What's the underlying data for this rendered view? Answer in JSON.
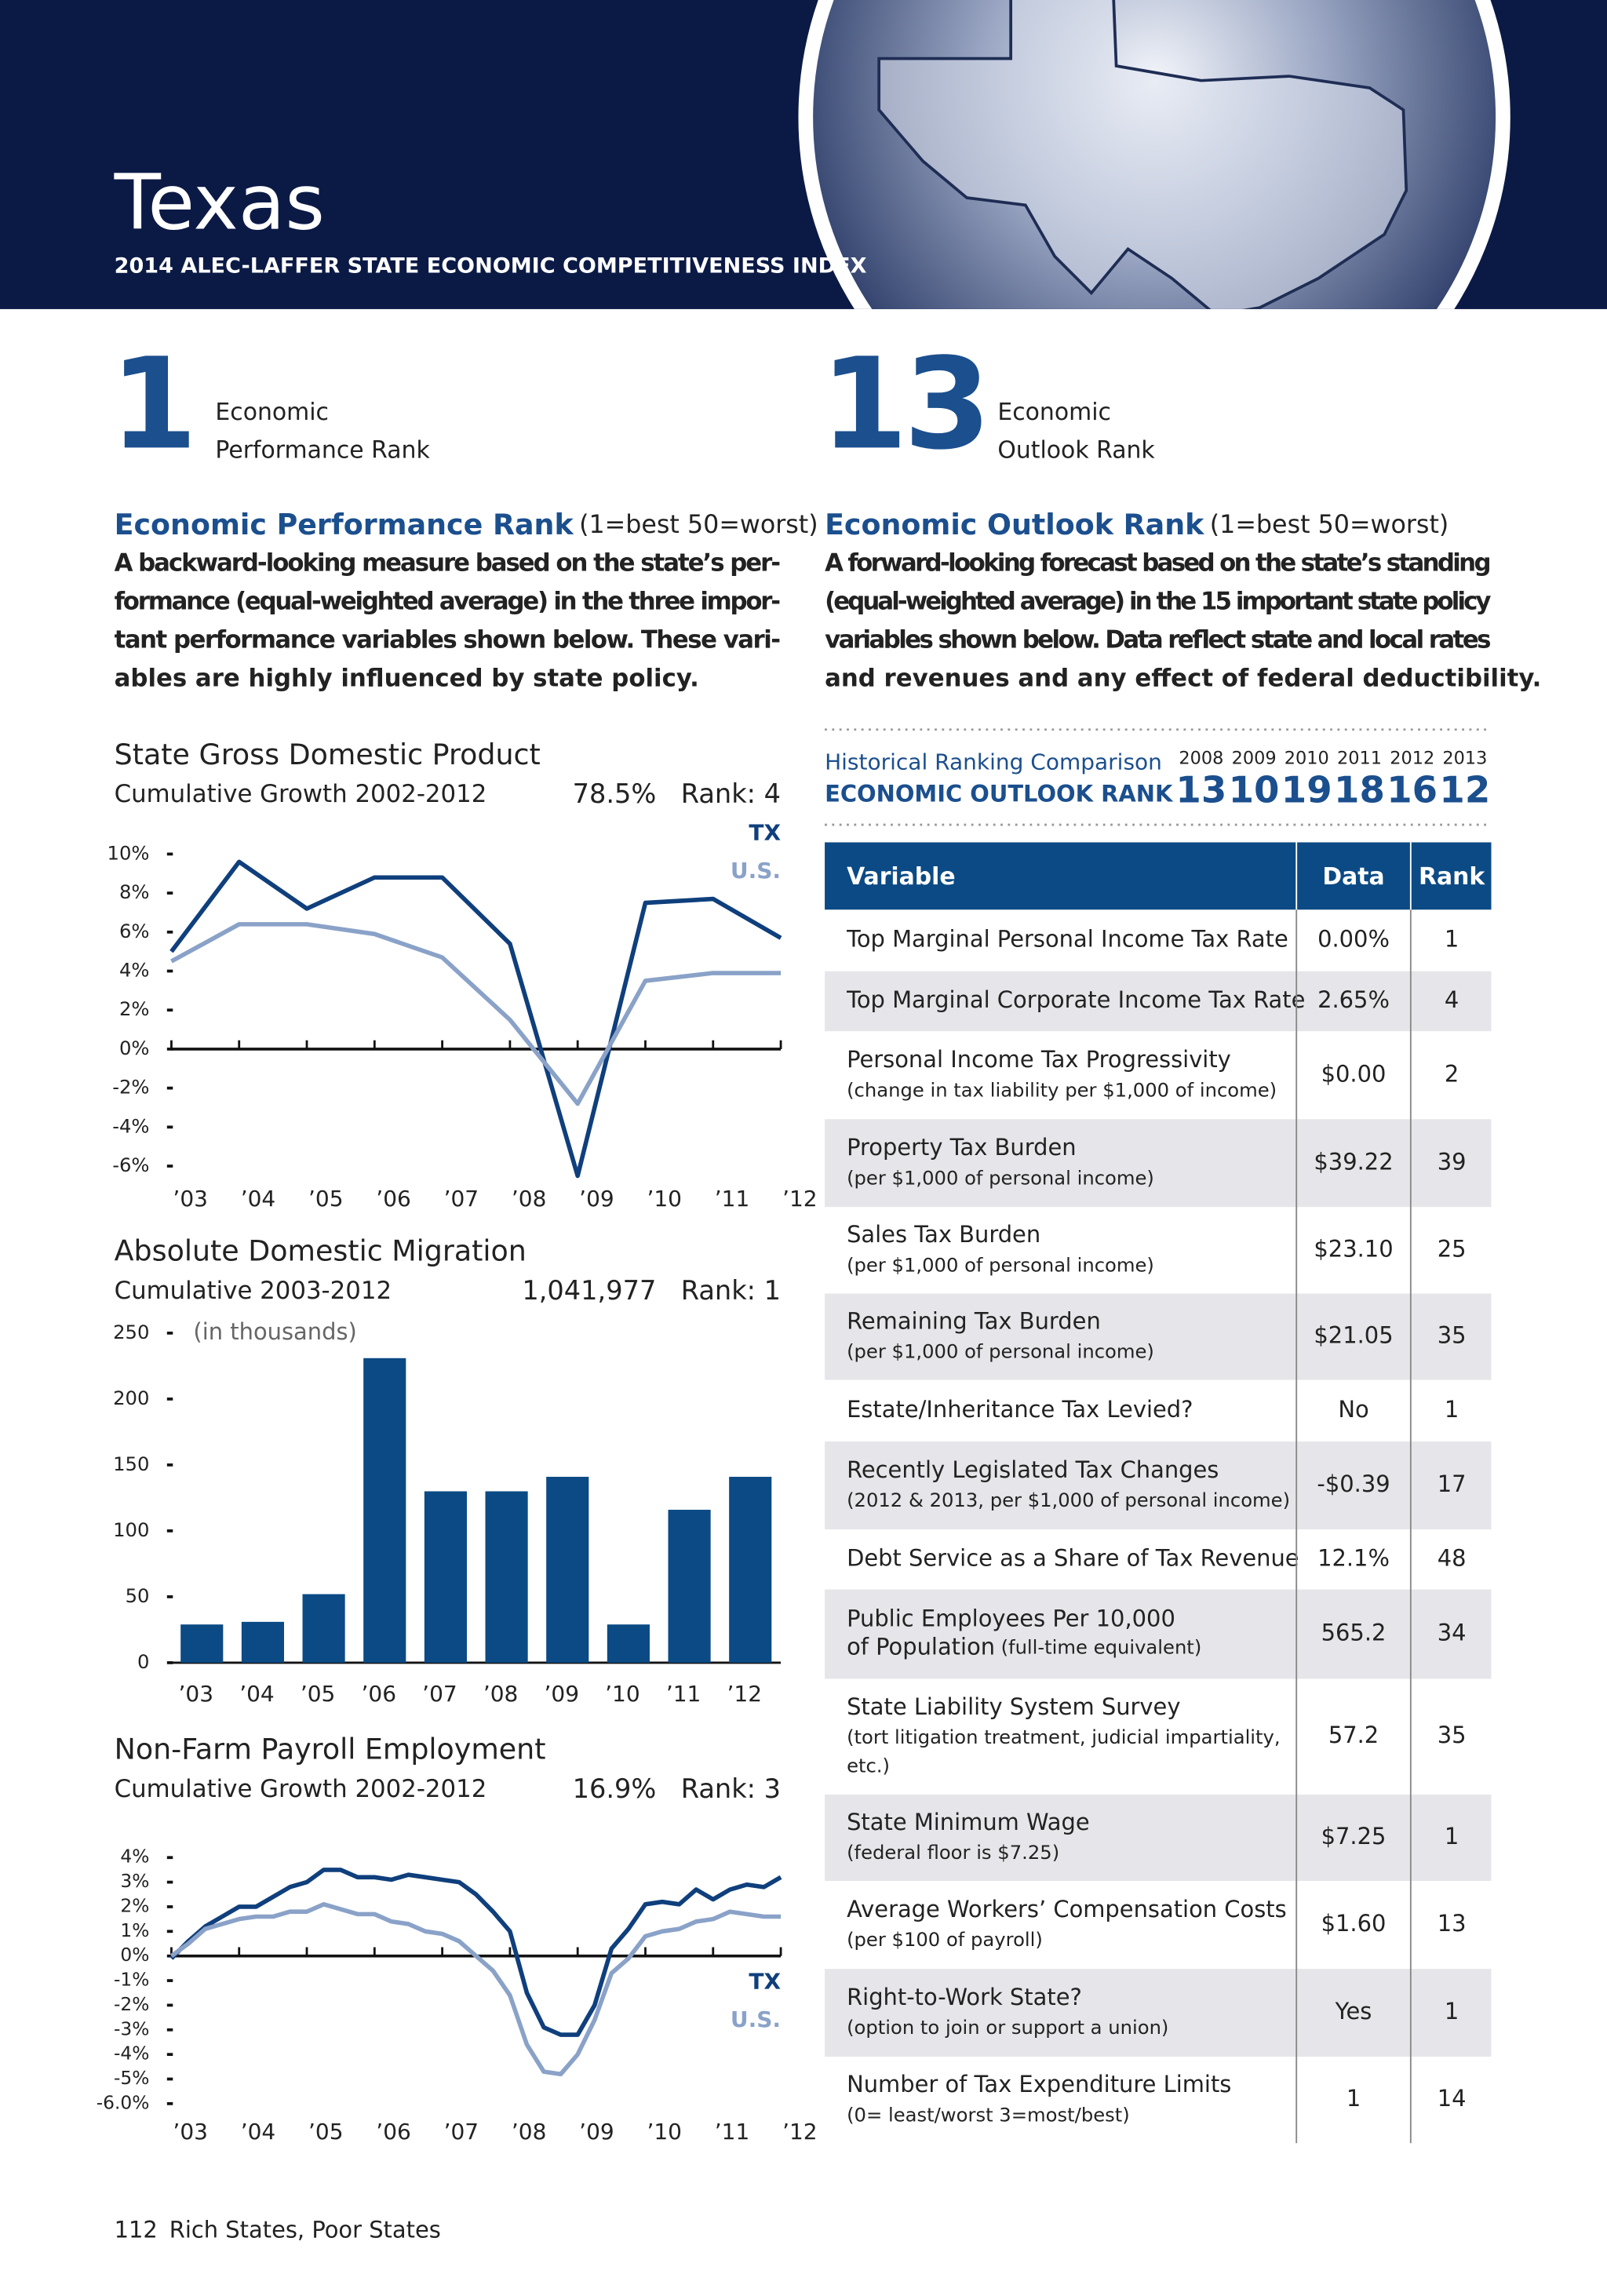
{
  "header": {
    "state": "Texas",
    "subtitle": "2014 ALEC-LAFFER STATE ECONOMIC COMPETITIVENESS INDEX"
  },
  "performance": {
    "rank": 1,
    "label": [
      "Economic",
      "Performance Rank"
    ],
    "heading": "Economic Performance Rank",
    "scale": "(1=best  50=worst)",
    "text": [
      "A backward-looking measure based on the state’s per-",
      "formance (equal-weighted average) in the three impor-",
      "tant performance variables shown below. These vari-",
      "ables are highly influenced by state policy."
    ]
  },
  "outlook": {
    "rank": 13,
    "label": [
      "Economic",
      "Outlook Rank"
    ],
    "heading": "Economic Outlook Rank",
    "scale": "(1=best  50=worst)",
    "text": [
      "A forward-looking forecast based on the state’s standing",
      "(equal-weighted average) in the 15 important state policy",
      "variables shown below. Data reflect state and local rates",
      "and revenues and any effect of federal deductibility."
    ]
  },
  "history": {
    "title": "Historical Ranking Comparison",
    "label": "ECONOMIC OUTLOOK RANK",
    "years": [
      2008,
      2009,
      2010,
      2011,
      2012,
      2013
    ],
    "ranks": [
      13,
      10,
      19,
      18,
      16,
      12
    ]
  },
  "table": {
    "columns": [
      "Variable",
      "Data",
      "Rank"
    ],
    "rows": [
      {
        "name": [
          "Top Marginal Personal Income Tax Rate"
        ],
        "note": [],
        "data": "0.00%",
        "rank": 1
      },
      {
        "name": [
          "Top Marginal Corporate Income Tax Rate"
        ],
        "note": [],
        "data": "2.65%",
        "rank": 4
      },
      {
        "name": [
          "Personal Income Tax Progressivity"
        ],
        "note": [
          "(change in tax liability per $1,000 of income)"
        ],
        "data": "$0.00",
        "rank": 2
      },
      {
        "name": [
          "Property Tax Burden"
        ],
        "note": [
          "(per $1,000 of personal income)"
        ],
        "data": "$39.22",
        "rank": 39
      },
      {
        "name": [
          "Sales Tax Burden"
        ],
        "note": [
          "(per $1,000 of personal income)"
        ],
        "data": "$23.10",
        "rank": 25
      },
      {
        "name": [
          "Remaining Tax Burden"
        ],
        "note": [
          "(per $1,000 of personal income)"
        ],
        "data": "$21.05",
        "rank": 35
      },
      {
        "name": [
          "Estate/Inheritance Tax Levied?"
        ],
        "note": [],
        "data": "No",
        "rank": 1
      },
      {
        "name": [
          "Recently Legislated Tax Changes"
        ],
        "note": [
          "(2012 & 2013, per $1,000 of personal income)"
        ],
        "data": "-$0.39",
        "rank": 17
      },
      {
        "name": [
          "Debt Service as a Share of Tax Revenue"
        ],
        "note": [],
        "data": "12.1%",
        "rank": 48
      },
      {
        "name": [
          "Public Employees Per 10,000",
          "of Population"
        ],
        "note": [],
        "note_inline": "(full-time equivalent)",
        "data": "565.2",
        "rank": 34
      },
      {
        "name": [
          "State Liability System Survey"
        ],
        "note": [
          "(tort litigation treatment, judicial impartiality,",
          "etc.)"
        ],
        "data": "57.2",
        "rank": 35
      },
      {
        "name": [
          "State Minimum Wage"
        ],
        "note": [
          "(federal floor is $7.25)"
        ],
        "data": "$7.25",
        "rank": 1
      },
      {
        "name": [
          "Average Workers’ Compensation Costs"
        ],
        "note": [
          "(per $100 of payroll)"
        ],
        "data": "$1.60",
        "rank": 13
      },
      {
        "name": [
          "Right-to-Work State?"
        ],
        "note": [
          "(option to join or support a union)"
        ],
        "data": "Yes",
        "rank": 1
      },
      {
        "name": [
          "Number of Tax Expenditure Limits"
        ],
        "note": [
          "(0= least/worst   3=most/best)"
        ],
        "data": "1",
        "rank": 14
      }
    ]
  },
  "chart_data": [
    {
      "type": "line",
      "title": "State Gross Domestic Product",
      "subtitle": "Cumulative Growth 2002-2012",
      "stat": "78.5%",
      "rank": "Rank: 4",
      "categories": [
        "’03",
        "’04",
        "’05",
        "’06",
        "’07",
        "’08",
        "’09",
        "’10",
        "’11",
        "’12"
      ],
      "series": [
        {
          "name": "TX",
          "color": "#0f3f7c",
          "values": [
            5,
            9.6,
            7.2,
            8.8,
            8.8,
            5.4,
            -6.5,
            7.5,
            7.7,
            5.7
          ]
        },
        {
          "name": "U.S.",
          "color": "#8aa2c8",
          "values": [
            4.5,
            6.4,
            6.4,
            5.9,
            4.7,
            1.5,
            -2.8,
            3.5,
            3.9,
            3.9
          ]
        }
      ],
      "ylim": [
        -6,
        10
      ],
      "yticks": [
        {
          "value": 10,
          "label": "10%"
        },
        {
          "value": 8,
          "label": "8%"
        },
        {
          "value": 6,
          "label": "6%"
        },
        {
          "value": 4,
          "label": "4%"
        },
        {
          "value": 2,
          "label": "2%"
        },
        {
          "value": 0,
          "label": "0%"
        },
        {
          "value": -2,
          "label": "-2%"
        },
        {
          "value": -4,
          "label": "-4%"
        },
        {
          "value": -6,
          "label": "-6%"
        }
      ],
      "legend": "top-right"
    },
    {
      "type": "bar",
      "title": "Absolute Domestic Migration",
      "subtitle": "Cumulative 2003-2012",
      "stat": "1,041,977",
      "rank": "Rank: 1",
      "annotation": "(in thousands)",
      "categories": [
        "’03",
        "’04",
        "’05",
        "’06",
        "’07",
        "’08",
        "’09",
        "’10",
        "’11",
        "’12"
      ],
      "values": [
        29,
        31,
        52,
        231,
        130,
        130,
        141,
        29,
        116,
        141
      ],
      "color": "#0b4a84",
      "ylim": [
        0,
        250
      ],
      "yticks": [
        0,
        50,
        100,
        150,
        200,
        250
      ]
    },
    {
      "type": "line",
      "title": "Non-Farm Payroll Employment",
      "subtitle": "Cumulative Growth 2002-2012",
      "stat": "16.9%",
      "rank": "Rank: 3",
      "x": [
        2003,
        2003.25,
        2003.5,
        2003.75,
        2004,
        2004.25,
        2004.5,
        2004.75,
        2005,
        2005.25,
        2005.5,
        2005.75,
        2006,
        2006.25,
        2006.5,
        2006.75,
        2007,
        2007.25,
        2007.5,
        2007.75,
        2008,
        2008.25,
        2008.5,
        2008.75,
        2009,
        2009.25,
        2009.5,
        2009.75,
        2010,
        2010.25,
        2010.5,
        2010.75,
        2011,
        2011.25,
        2011.5,
        2011.75,
        2012
      ],
      "series": [
        {
          "name": "TX",
          "color": "#0f3f7c",
          "values": [
            -0.1,
            0.6,
            1.2,
            1.6,
            2.0,
            2.0,
            2.4,
            2.8,
            3.0,
            3.5,
            3.5,
            3.2,
            3.2,
            3.1,
            3.3,
            3.2,
            3.1,
            3.0,
            2.5,
            1.8,
            1.0,
            -1.5,
            -2.9,
            -3.2,
            -3.2,
            -2.0,
            0.3,
            1.1,
            2.1,
            2.2,
            2.1,
            2.7,
            2.3,
            2.7,
            2.9,
            2.8,
            3.2
          ]
        },
        {
          "name": "U.S.",
          "color": "#8aa2c8",
          "values": [
            0,
            0.5,
            1.1,
            1.3,
            1.5,
            1.6,
            1.6,
            1.8,
            1.8,
            2.1,
            1.9,
            1.7,
            1.7,
            1.4,
            1.3,
            1.0,
            0.9,
            0.6,
            0.0,
            -0.6,
            -1.6,
            -3.6,
            -4.7,
            -4.8,
            -4.0,
            -2.6,
            -0.7,
            -0.1,
            0.8,
            1.0,
            1.1,
            1.4,
            1.5,
            1.8,
            1.7,
            1.6,
            1.6
          ]
        }
      ],
      "xlim": [
        2003,
        2012
      ],
      "xticks": [
        {
          "value": 2003,
          "label": "’03"
        },
        {
          "value": 2004,
          "label": "’04"
        },
        {
          "value": 2005,
          "label": "’05"
        },
        {
          "value": 2006,
          "label": "’06"
        },
        {
          "value": 2007,
          "label": "’07"
        },
        {
          "value": 2008,
          "label": "’08"
        },
        {
          "value": 2009,
          "label": "’09"
        },
        {
          "value": 2010,
          "label": "’10"
        },
        {
          "value": 2011,
          "label": "’11"
        },
        {
          "value": 2012,
          "label": "’12"
        }
      ],
      "ylim": [
        -6,
        4
      ],
      "yticks": [
        {
          "value": 4,
          "label": "4%"
        },
        {
          "value": 3,
          "label": "3%"
        },
        {
          "value": 2,
          "label": "2%"
        },
        {
          "value": 1,
          "label": "1%"
        },
        {
          "value": 0,
          "label": "0%"
        },
        {
          "value": -1,
          "label": "-1%"
        },
        {
          "value": -2,
          "label": "-2%"
        },
        {
          "value": -3,
          "label": "-3%"
        },
        {
          "value": -4,
          "label": "-4%"
        },
        {
          "value": -5,
          "label": "-5%"
        },
        {
          "value": -6,
          "label": "-6.0%"
        }
      ],
      "legend": "bottom-right"
    }
  ],
  "footer": {
    "page": 112,
    "publication": "Rich States, Poor States"
  }
}
